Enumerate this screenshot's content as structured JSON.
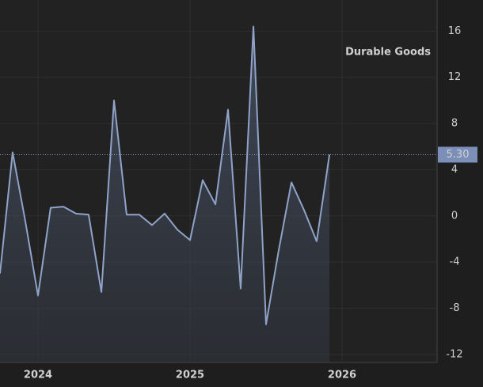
{
  "chart_data": {
    "type": "area",
    "series": [
      {
        "name": "Durable Goods",
        "color": "#8fa3c8",
        "x": [
          2023.75,
          2023.833,
          2023.917,
          2024,
          2024.083,
          2024.167,
          2024.25,
          2024.333,
          2024.417,
          2024.5,
          2024.583,
          2024.667,
          2024.75,
          2024.833,
          2024.917,
          2025,
          2025.083,
          2025.167,
          2025.25,
          2025.333,
          2025.417,
          2025.5,
          2025.583,
          2025.667,
          2025.75,
          2025.833,
          2025.917
        ],
        "values": [
          -5,
          5.5,
          -0.5,
          -6.9,
          0.7,
          0.8,
          0.2,
          0.1,
          -6.6,
          10,
          0.1,
          0.1,
          -0.8,
          0.2,
          -1.2,
          -2.1,
          3.1,
          1.0,
          9.2,
          -6.3,
          16.4,
          -9.4,
          -3,
          2.9,
          0.5,
          -2.2,
          5.3
        ]
      }
    ],
    "last_value": {
      "value": 5.3,
      "label": "5.30"
    },
    "xlim": [
      2023.75,
      2026.625
    ],
    "xticks": [
      2024,
      2025,
      2026
    ],
    "ylim": [
      -12.7,
      18.7
    ],
    "yticks": [
      16,
      12,
      8,
      4,
      0,
      -4,
      -8,
      -12
    ],
    "grid": true
  }
}
